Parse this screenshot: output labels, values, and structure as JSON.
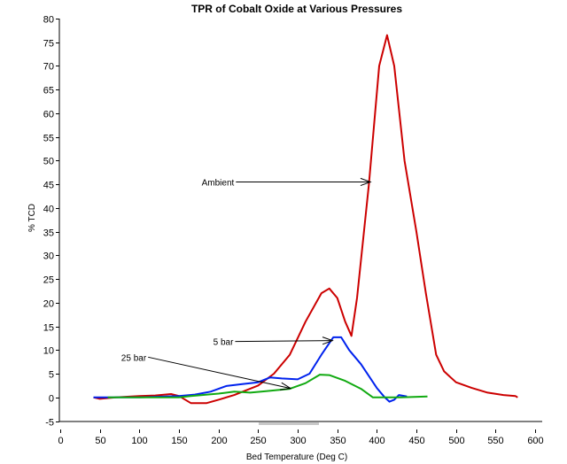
{
  "chart_data": {
    "type": "line",
    "title": "TPR of Cobalt Oxide at Various Pressures",
    "xlabel": "Bed Temperature (Deg C)",
    "ylabel": "% TCD",
    "xlim": [
      0,
      600
    ],
    "ylim": [
      -5,
      80
    ],
    "xticks": [
      0,
      50,
      100,
      150,
      200,
      250,
      300,
      350,
      400,
      450,
      500,
      550,
      600
    ],
    "yticks": [
      -5,
      0,
      5,
      10,
      15,
      20,
      25,
      30,
      35,
      40,
      45,
      50,
      55,
      60,
      65,
      70,
      75,
      80
    ],
    "grid": false,
    "series": [
      {
        "name": "Ambient",
        "color": "#cc0000",
        "x": [
          42,
          50,
          70,
          100,
          120,
          140,
          150,
          165,
          185,
          200,
          220,
          250,
          270,
          290,
          310,
          330,
          340,
          350,
          360,
          368,
          375,
          390,
          403,
          413,
          422,
          435,
          450,
          462,
          475,
          485,
          500,
          520,
          540,
          560,
          575,
          578
        ],
        "y": [
          0,
          -0.3,
          0,
          0.3,
          0.4,
          0.7,
          0.3,
          -1.2,
          -1.2,
          -0.5,
          0.5,
          2.5,
          5,
          9,
          16,
          22,
          23,
          21,
          16,
          13,
          21,
          45,
          70,
          76.5,
          70,
          50,
          35,
          22,
          9,
          5.5,
          3.2,
          2,
          1,
          0.5,
          0.3,
          0
        ]
      },
      {
        "name": "5 bar",
        "color": "#0022ee",
        "x": [
          42,
          60,
          100,
          150,
          170,
          190,
          210,
          230,
          250,
          265,
          280,
          300,
          315,
          330,
          345,
          355,
          365,
          380,
          400,
          410,
          416,
          422,
          428,
          438
        ],
        "y": [
          0,
          0,
          0,
          0.3,
          0.6,
          1.2,
          2.4,
          2.8,
          3.2,
          4.2,
          4.0,
          3.8,
          5,
          9,
          12.7,
          12.7,
          10,
          7,
          2,
          0,
          -0.9,
          -0.5,
          0.5,
          0.2
        ]
      },
      {
        "name": "25 bar",
        "color": "#11aa11",
        "x": [
          60,
          100,
          150,
          165,
          200,
          220,
          240,
          260,
          290,
          310,
          328,
          340,
          360,
          380,
          395,
          430,
          464
        ],
        "y": [
          0,
          0,
          0,
          0.3,
          0.8,
          1.2,
          1,
          1.3,
          1.8,
          3,
          4.8,
          4.7,
          3.5,
          1.8,
          0,
          0,
          0.2
        ]
      }
    ],
    "annotations": [
      {
        "text": "Ambient",
        "label_at": [
          222,
          45.5
        ],
        "arrow_to": [
          392,
          45.5
        ]
      },
      {
        "text": "5 bar",
        "label_at": [
          221,
          11.8
        ],
        "arrow_to": [
          344,
          12
        ]
      },
      {
        "text": "25 bar",
        "label_at": [
          111,
          8.5
        ],
        "arrow_to": [
          291,
          1.9
        ]
      }
    ],
    "legend": "none"
  }
}
